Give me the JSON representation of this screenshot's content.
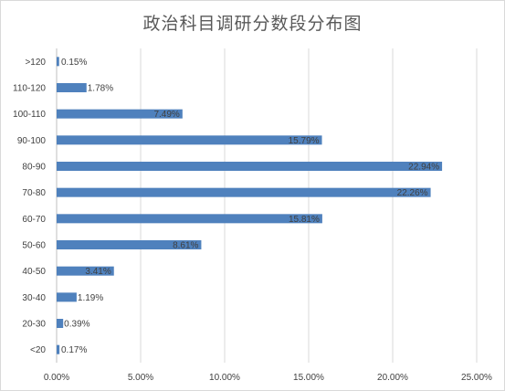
{
  "chart_data": {
    "type": "bar",
    "orientation": "horizontal",
    "title": "政治科目调研分数段分布图",
    "xlabel": "",
    "ylabel": "",
    "categories": [
      ">120",
      "110-120",
      "100-110",
      "90-100",
      "80-90",
      "70-80",
      "60-70",
      "50-60",
      "40-50",
      "30-40",
      "20-30",
      "<20"
    ],
    "values": [
      0.15,
      1.78,
      7.49,
      15.79,
      22.94,
      22.26,
      15.81,
      8.61,
      3.41,
      1.19,
      0.39,
      0.17
    ],
    "value_labels": [
      "0.15%",
      "1.78%",
      "7.49%",
      "15.79%",
      "22.94%",
      "22.26%",
      "15.81%",
      "8.61%",
      "3.41%",
      "1.19%",
      "0.39%",
      "0.17%"
    ],
    "x_ticks": [
      0,
      5,
      10,
      15,
      20,
      25
    ],
    "x_tick_labels": [
      "0.00%",
      "5.00%",
      "10.00%",
      "15.00%",
      "20.00%",
      "25.00%"
    ],
    "xlim": [
      0,
      25
    ],
    "grid": true,
    "legend": "none",
    "bar_color": "#4f81bd",
    "grid_color": "#d9d9d9"
  }
}
